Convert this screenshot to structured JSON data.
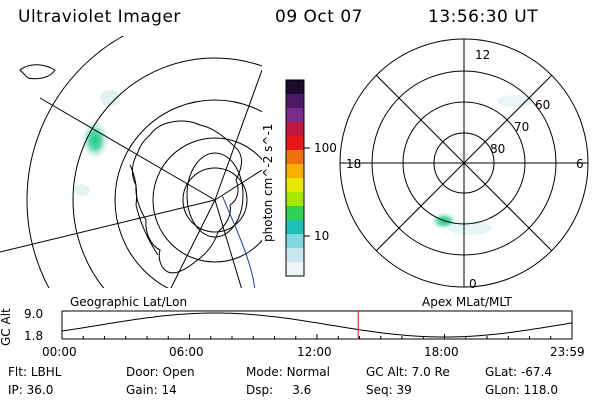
{
  "header": {
    "instrument": "Ultraviolet Imager",
    "date": "09 Oct 07",
    "time": "13:56:30 UT"
  },
  "colorbar": {
    "label": "photon cm^-2 s^-1",
    "ticks": [
      "100",
      "10"
    ],
    "colors": [
      "#1a0a2e",
      "#4a1a66",
      "#7a2a8a",
      "#c01840",
      "#e81818",
      "#f07010",
      "#f8b000",
      "#e8e800",
      "#a8e800",
      "#30d050",
      "#20c0b8",
      "#80d8e0",
      "#c8e8f0",
      "#eef4f6"
    ]
  },
  "polar_plot": {
    "mlt_labels": {
      "top": "12",
      "bottom": "0",
      "left": "18",
      "right": "6"
    },
    "lat_labels": [
      "60",
      "70",
      "80"
    ]
  },
  "left_map": {
    "accent": "#1a3aa0",
    "aurora": "#20c880"
  },
  "altitude_panel": {
    "ylabel": "GC Alt",
    "yticks": [
      "9.0",
      "1.8"
    ],
    "left_caption": "Geographic Lat/Lon",
    "right_caption": "Apex MLat/MLT",
    "xticks": [
      "00:00",
      "06:00",
      "12:00",
      "18:00",
      "23:59"
    ],
    "current_marker_hours": 13.94,
    "marker_color": "#e01010"
  },
  "info": {
    "row1": [
      {
        "label": "Flt:",
        "value": "LBHL"
      },
      {
        "label": "Door:",
        "value": "Open"
      },
      {
        "label": "Mode:",
        "value": "Normal"
      },
      {
        "label": "GC Alt:",
        "value": "7.0 Re"
      },
      {
        "label": "GLat:",
        "value": "-67.4"
      }
    ],
    "row2": [
      {
        "label": "IP:",
        "value": "36.0"
      },
      {
        "label": "Gain:",
        "value": "14"
      },
      {
        "label": "Dsp:",
        "value": "3.6"
      },
      {
        "label": "Seq:",
        "value": "39"
      },
      {
        "label": "GLon:",
        "value": "118.0"
      }
    ]
  }
}
